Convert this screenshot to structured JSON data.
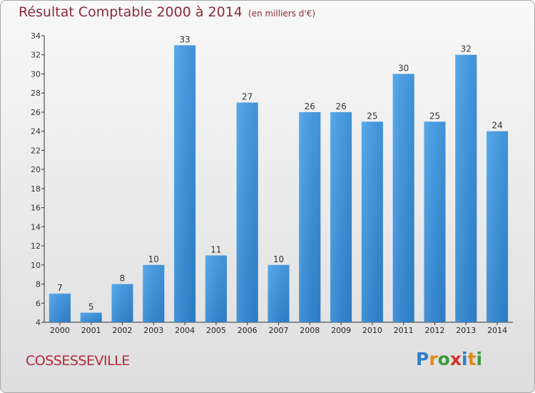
{
  "chart_data": {
    "type": "bar",
    "title": "Résultat Comptable 2000 à 2014",
    "subtitle": "(en milliers d'€)",
    "categories": [
      "2000",
      "2001",
      "2002",
      "2003",
      "2004",
      "2005",
      "2006",
      "2007",
      "2008",
      "2009",
      "2010",
      "2011",
      "2012",
      "2013",
      "2014"
    ],
    "values": [
      7,
      5,
      8,
      10,
      33,
      11,
      27,
      10,
      26,
      26,
      25,
      30,
      25,
      32,
      24
    ],
    "ylim": [
      4,
      34
    ],
    "yticks": [
      4,
      6,
      8,
      10,
      12,
      14,
      16,
      18,
      20,
      22,
      24,
      26,
      28,
      30,
      32,
      34
    ],
    "grid": false,
    "legend": "none",
    "bar_color": "#3d8fd6"
  },
  "footer": {
    "commune": "COSSESSEVILLE",
    "logo_text": "Proxiti",
    "logo_colors": [
      "#2f7fc8",
      "#e28a1c",
      "#3d9b3d",
      "#d1352b",
      "#2f7fc8",
      "#e28a1c",
      "#3d9b3d"
    ]
  }
}
